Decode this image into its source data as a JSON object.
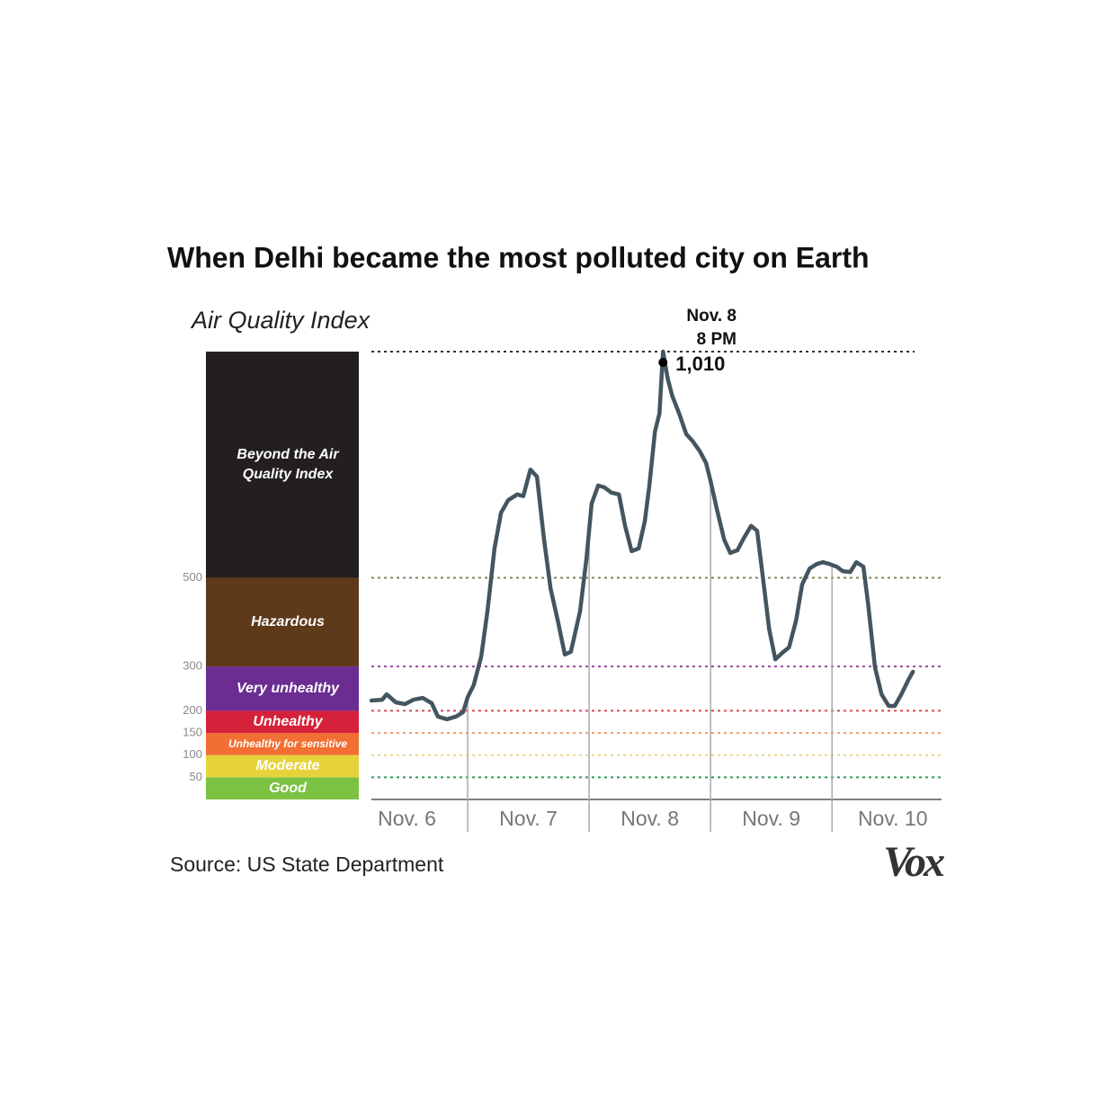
{
  "chart_data": {
    "type": "line",
    "title": "When Delhi became the most polluted city on Earth",
    "y_label": "Air Quality Index",
    "source": "Source: US State Department",
    "logo": "Vox",
    "categories": [
      "Nov. 6",
      "Nov. 7",
      "Nov. 8",
      "Nov. 9",
      "Nov. 10"
    ],
    "xlim": [
      0,
      118
    ],
    "ylim": [
      0,
      1010
    ],
    "yticks": [
      50,
      100,
      150,
      200,
      300,
      500
    ],
    "bands": [
      {
        "label": "Good",
        "upper": 50,
        "color": "#7cc242",
        "grid": "#2e9b5a"
      },
      {
        "label": "Moderate",
        "upper": 100,
        "color": "#e6d33c",
        "grid": "#ead98a"
      },
      {
        "label": "Unhealthy for sensitive",
        "upper": 150,
        "color": "#f26f33",
        "grid": "#f2a06e"
      },
      {
        "label": "Unhealthy",
        "upper": 200,
        "color": "#d5213a",
        "grid": "#d94b5a"
      },
      {
        "label": "Very unhealthy",
        "upper": 300,
        "color": "#6b2d92",
        "grid": "#9b4a9e"
      },
      {
        "label": "Hazardous",
        "upper": 500,
        "color": "#5e3a1b",
        "grid": "#8a8060"
      },
      {
        "label": "Beyond the Air Quality Index",
        "color": "#231f20",
        "grid": "#555555"
      }
    ],
    "annotation": {
      "date": "Nov. 8",
      "time": "8 PM",
      "label": "1,010"
    },
    "series": [
      {
        "color": "#44555f",
        "x": [
          5.0,
          7.1,
          8.0,
          9.8,
          11.6,
          13.3,
          15.1,
          16.9,
          18.1,
          19.9,
          21.7,
          23.1,
          24.0,
          25.2,
          26.7,
          27.9,
          29.3,
          30.6,
          32.0,
          33.8,
          35.0,
          36.4,
          37.7,
          39.1,
          40.4,
          41.8,
          43.2,
          44.4,
          46.2,
          47.5,
          48.5,
          49.8,
          51.0,
          52.4,
          53.9,
          55.1,
          56.4,
          57.8,
          59.0,
          59.9,
          61.0,
          61.9,
          62.6,
          63.5,
          64.4,
          65.8,
          67.2,
          68.4,
          69.9,
          71.1,
          72.0,
          73.2,
          74.7,
          75.9,
          77.3,
          78.6,
          80.0,
          81.2,
          82.3,
          83.6,
          84.8,
          86.2,
          87.5,
          88.9,
          90.1,
          91.6,
          93.0,
          94.2,
          95.5,
          96.9,
          98.1,
          99.6,
          100.8,
          102.2,
          103.1,
          104.5,
          105.8,
          107.2,
          108.4,
          109.7,
          111.1,
          112.0
        ],
        "values": [
          223,
          225,
          237,
          219,
          215,
          225,
          229,
          217,
          187,
          181,
          187,
          197,
          231,
          258,
          323,
          424,
          566,
          647,
          675,
          688,
          684,
          744,
          728,
          586,
          475,
          404,
          327,
          333,
          424,
          546,
          667,
          708,
          704,
          692,
          688,
          617,
          560,
          566,
          627,
          708,
          830,
          870,
          1010,
          951,
          911,
          870,
          824,
          809,
          785,
          759,
          718,
          657,
          586,
          556,
          562,
          590,
          617,
          606,
          505,
          383,
          316,
          331,
          343,
          404,
          485,
          521,
          531,
          535,
          531,
          525,
          515,
          513,
          535,
          525,
          444,
          298,
          237,
          211,
          211,
          237,
          270,
          288
        ]
      }
    ]
  }
}
